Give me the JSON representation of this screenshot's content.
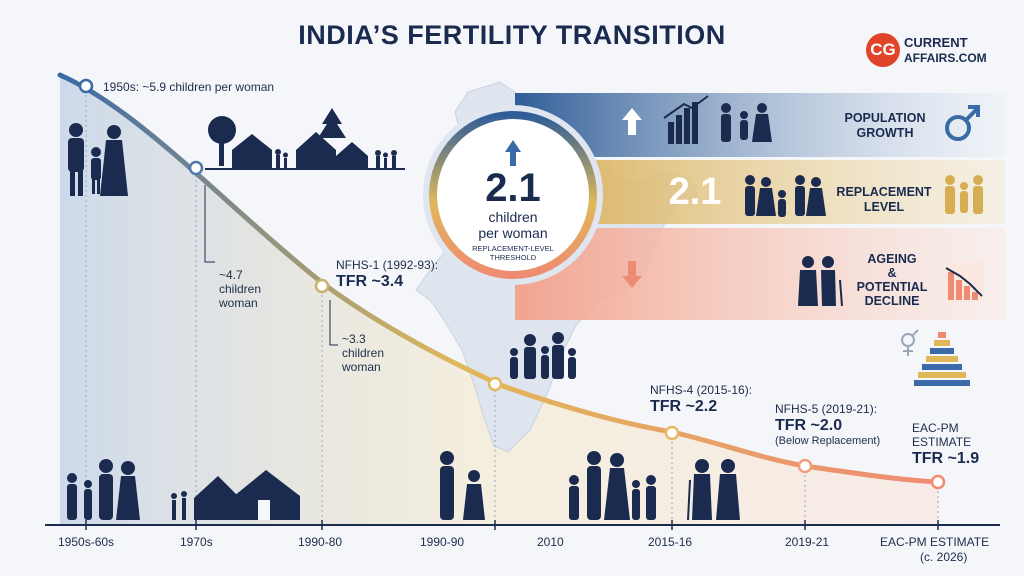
{
  "title": "INDIA’S FERTILITY TRANSITION",
  "logo": {
    "badge": "CG",
    "line1": "CURRENT",
    "line2": "AFFAIRS.COM"
  },
  "annotations": {
    "a1950": "1950s: ~5.9 children per woman",
    "a1970_1": "~4.7",
    "a1970_2": "children",
    "a1970_3": "woman",
    "nfhs1_1": "NFHS-1 (1992-93):",
    "nfhs1_2": "TFR ~3.4",
    "a1990_1": "~3.3",
    "a1990_2": "children",
    "a1990_3": "woman",
    "nfhs4_1": "NFHS-4 (2015-16):",
    "nfhs4_2": "TFR ~2.2",
    "nfhs5_1": "NFHS-5 (2019-21):",
    "nfhs5_2": "TFR ~2.0",
    "nfhs5_3": "(Below Replacement)",
    "eac_1": "EAC-PM",
    "eac_2": "ESTIMATE",
    "eac_3": "TFR ~1.9"
  },
  "circle": {
    "value": "2.1",
    "line1": "children",
    "line2": "per woman",
    "line3": "REPLACEMENT-LEVEL",
    "line4": "THRESHOLD"
  },
  "bands": {
    "growth_1": "POPULATION",
    "growth_2": "GROWTH",
    "replacement_value": "2.1",
    "replacement_1": "REPLACEMENT",
    "replacement_2": "LEVEL",
    "ageing_1": "AGEING",
    "ageing_2": "&",
    "ageing_3": "POTENTIAL",
    "ageing_4": "DECLINE"
  },
  "axis_labels": [
    "1950s-60s",
    "1970s",
    "1990-80",
    "1990-90",
    "2010",
    "2015-16",
    "2019-21",
    "EAC-PM ESTIMATE",
    "(c. 2026)"
  ],
  "colors": {
    "navy": "#1b2b50",
    "curve_start": "#3a6aa8",
    "curve_mid": "#e0b85a",
    "curve_end": "#ef8b72",
    "growth_band": "#2f5d97",
    "replacement_band": "#d7ad52",
    "ageing_band": "#f2a48f",
    "logo_red": "#e0452b"
  },
  "icons": [
    "up-arrow-icon",
    "down-arrow-icon",
    "male-symbol-icon",
    "gender-symbol-icon",
    "bar-chart-rising-icon",
    "bar-chart-falling-icon",
    "family-icon",
    "house-icon",
    "tree-icon",
    "elderly-couple-icon",
    "population-pyramid-icon",
    "india-map-icon"
  ]
}
